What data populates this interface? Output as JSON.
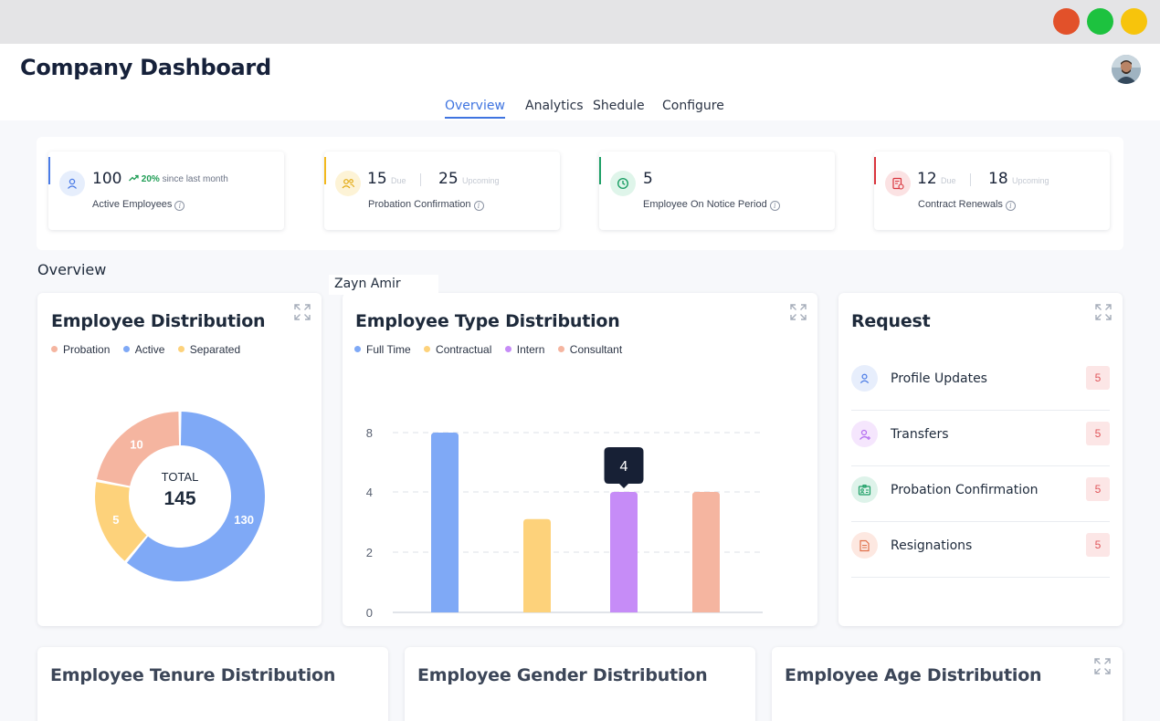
{
  "app": {
    "title": "Company Dashboard",
    "tabs": [
      {
        "label": "Overview",
        "active": true
      },
      {
        "label": "Analytics",
        "active": false
      },
      {
        "label": "Shedule",
        "active": false
      },
      {
        "label": "Configure",
        "active": false
      }
    ]
  },
  "stats": [
    {
      "value": "100",
      "label": "Active Employees",
      "trend": "20%",
      "trend_text": "since last month",
      "accent": "#4a7be6",
      "icon": "user-icon"
    },
    {
      "value": "15",
      "value_sub": "Due",
      "value2": "25",
      "value2_sub": "Upcoming",
      "label": "Probation Confirmation",
      "accent": "#f2b81d",
      "icon": "user-group-icon"
    },
    {
      "value": "5",
      "label": "Employee On Notice Period",
      "accent": "#1d9f66",
      "icon": "clock-icon"
    },
    {
      "value": "12",
      "value_sub": "Due",
      "value2": "18",
      "value2_sub": "Upcoming",
      "label": "Contract Renewals",
      "accent": "#d9343d",
      "icon": "contract-icon"
    }
  ],
  "overview_title": "Overview",
  "hover_name": "Zayn Amir",
  "employee_distribution": {
    "title": "Employee Distribution",
    "legend": [
      "Probation",
      "Active",
      "Separated"
    ],
    "center_label": "TOTAL",
    "center_value": "145"
  },
  "employee_type": {
    "title": "Employee Type Distribution",
    "legend": [
      "Full Time",
      "Contractual",
      "Intern",
      "Consultant"
    ],
    "tooltip_value": "4"
  },
  "request": {
    "title": "Request",
    "items": [
      {
        "label": "Profile Updates",
        "count": "5",
        "icon": "user-icon"
      },
      {
        "label": "Transfers",
        "count": "5",
        "icon": "user-add-icon"
      },
      {
        "label": "Probation Confirmation",
        "count": "5",
        "icon": "id-card-icon"
      },
      {
        "label": "Resignations",
        "count": "5",
        "icon": "document-icon"
      }
    ]
  },
  "bottom_cards": [
    {
      "title": "Employee Tenure Distribution"
    },
    {
      "title": "Employee Gender Distribution"
    },
    {
      "title": "Employee Age Distribution"
    }
  ],
  "colors": {
    "probation": "#f5b5a0",
    "active": "#7fa9f6",
    "separated": "#fdd27b",
    "intern": "#c68cf7",
    "accent": "#3f74e0"
  },
  "chart_data": [
    {
      "type": "pie",
      "categories": [
        "Probation",
        "Active",
        "Separated"
      ],
      "values": [
        10,
        130,
        5
      ],
      "labels": [
        "10",
        "130",
        "5"
      ],
      "legend": "top-left"
    },
    {
      "type": "bar",
      "categories": [
        "FULL TIME",
        "CONTRACTUAL",
        "INTERN",
        "CONSULTANT"
      ],
      "values": [
        8,
        3.1,
        4,
        4
      ],
      "ylim": [
        0,
        8
      ],
      "yticks": [
        0,
        2,
        4,
        8
      ],
      "ytick_labels": [
        "0",
        "2",
        "4",
        "8"
      ],
      "grid": true,
      "colors": [
        "#7fa9f6",
        "#fdd27b",
        "#c68cf7",
        "#f5b5a0"
      ]
    }
  ]
}
